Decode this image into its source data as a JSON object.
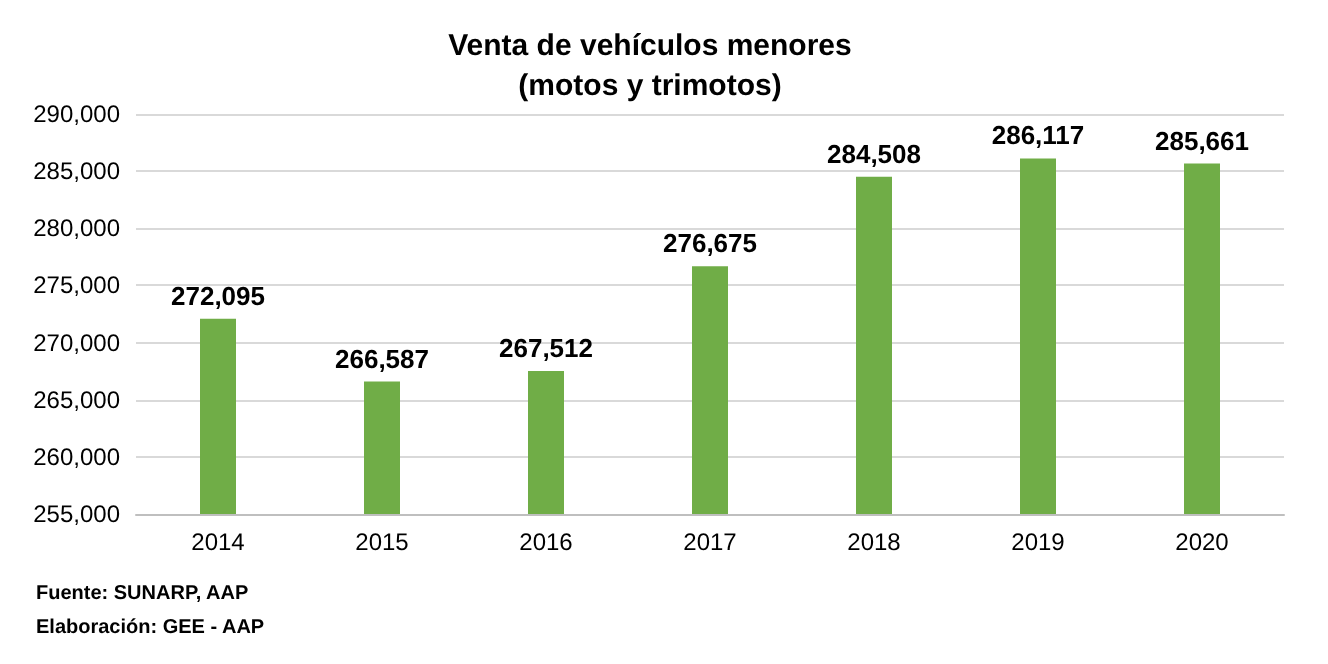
{
  "chart_data": {
    "type": "bar",
    "title": "Venta de vehículos menores\n(motos y trimotos)",
    "categories": [
      "2014",
      "2015",
      "2016",
      "2017",
      "2018",
      "2019",
      "2020"
    ],
    "values": [
      272095,
      266587,
      267512,
      276675,
      284508,
      286117,
      285661
    ],
    "color": "#70ad47",
    "ylim": [
      255000,
      290000
    ],
    "yticks": [
      {
        "value": 255000,
        "label": "255,000"
      },
      {
        "value": 260000,
        "label": "260,000"
      },
      {
        "value": 265000,
        "label": "265,000"
      },
      {
        "value": 270000,
        "label": "270,000"
      },
      {
        "value": 275000,
        "label": "275,000"
      },
      {
        "value": 280000,
        "label": "280,000"
      },
      {
        "value": 285000,
        "label": "285,000"
      },
      {
        "value": 290000,
        "label": "290,000"
      }
    ],
    "grid": "y",
    "value_labels": [
      "272,095",
      "266,587",
      "267,512",
      "276,675",
      "284,508",
      "286,117",
      "285,661"
    ],
    "annotations": [
      "Fuente: SUNARP, AAP",
      "Elaboración: GEE - AAP"
    ]
  }
}
